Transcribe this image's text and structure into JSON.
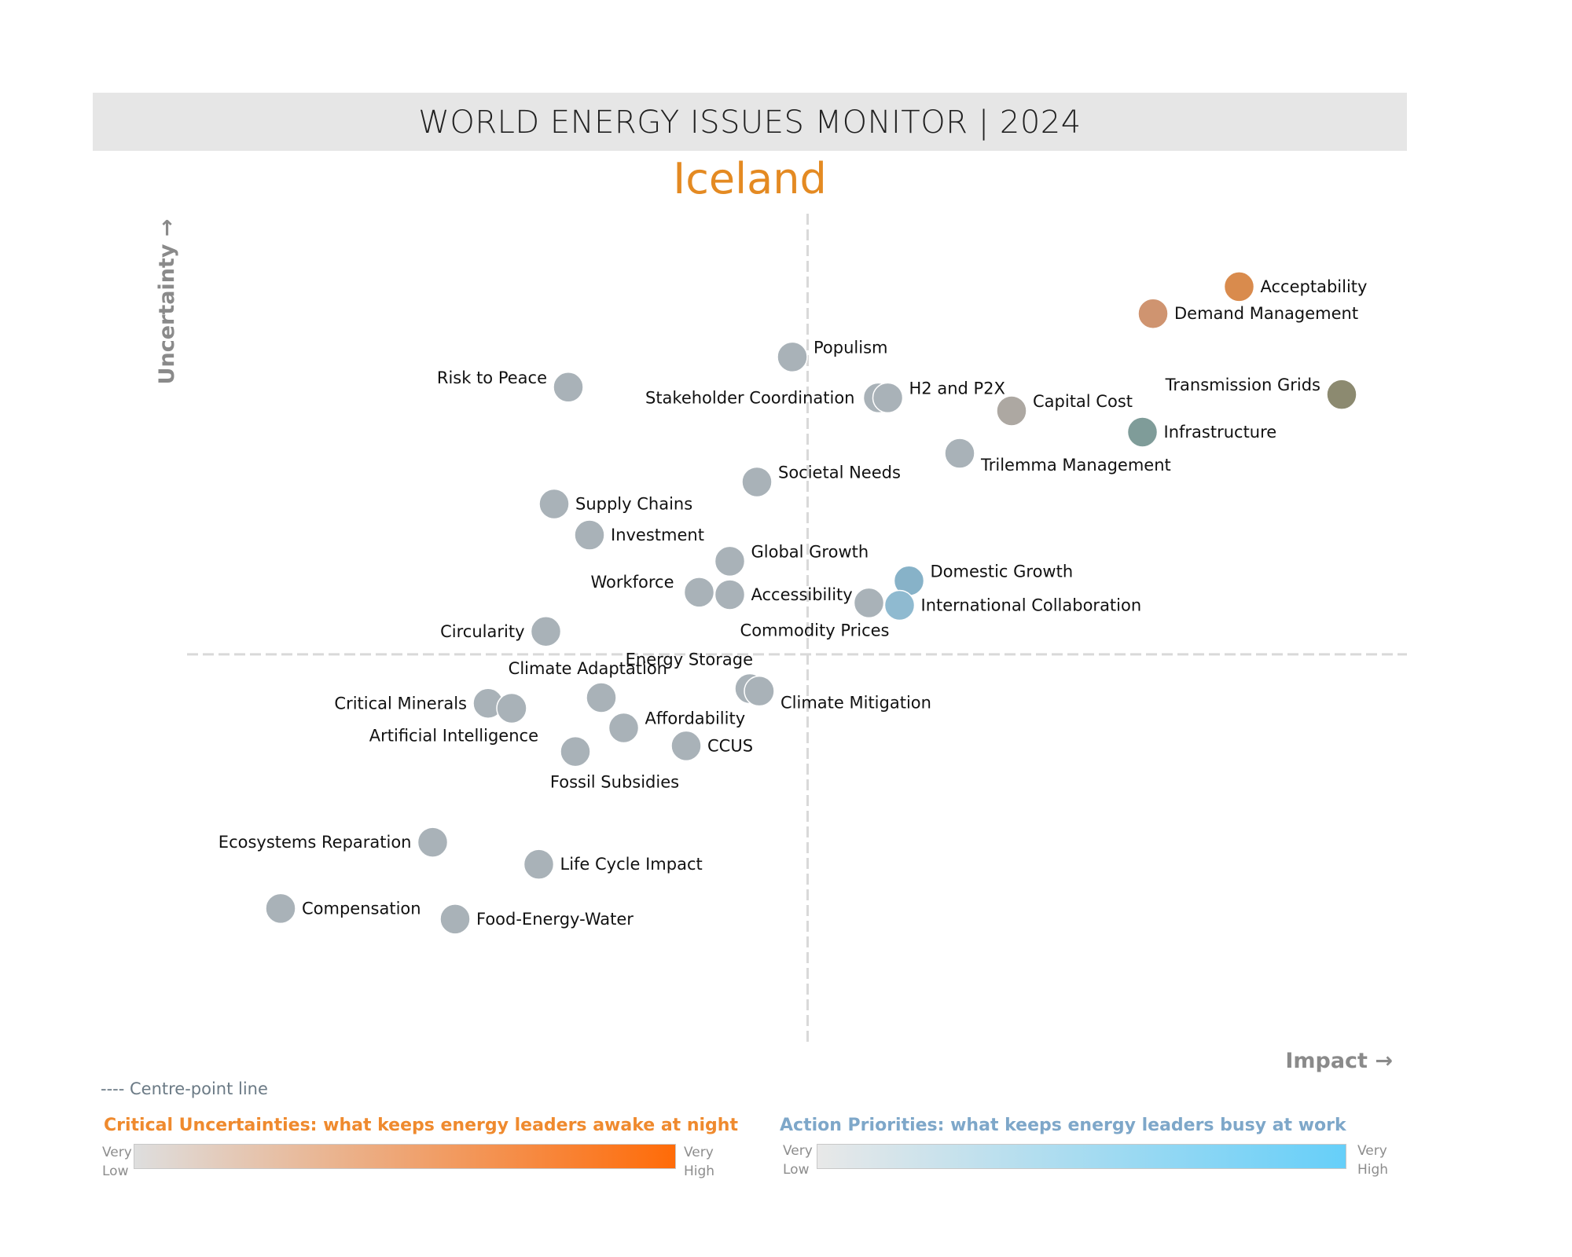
{
  "header": {
    "title": "WORLD ENERGY ISSUES MONITOR | 2024",
    "country": "Iceland"
  },
  "chart_data": {
    "type": "scatter",
    "xlabel": "Impact →",
    "ylabel": "Uncertainty →",
    "xlim": [
      0,
      100
    ],
    "ylim": [
      0,
      100
    ],
    "centre_x": 50.5,
    "centre_y": 47.8,
    "grid": false,
    "colors": {
      "neutral": "#a9b2b8",
      "acceptability": "#d98b4d",
      "demand_management": "#cf9470",
      "transmission_grids": "#8c8a70",
      "capital_cost": "#ada8a2",
      "infrastructure": "#7f9c99",
      "domestic_growth": "#87b2c8",
      "international_collaboration": "#8fbad0"
    },
    "points": [
      {
        "name": "Acceptability",
        "x": 87.1,
        "y": 92.8,
        "color": "acceptability",
        "label_pos": "right"
      },
      {
        "name": "Demand Management",
        "x": 79.8,
        "y": 89.5,
        "color": "demand_management",
        "label_pos": "right"
      },
      {
        "name": "Populism",
        "x": 49.2,
        "y": 84.2,
        "color": "neutral",
        "label_pos": "right-up"
      },
      {
        "name": "Risk to Peace",
        "x": 30.2,
        "y": 80.5,
        "color": "neutral",
        "label_pos": "left-up"
      },
      {
        "name": "Stakeholder Coordination",
        "x": 56.5,
        "y": 79.2,
        "color": "neutral",
        "label_pos": "left-up"
      },
      {
        "name": "H2 and P2X",
        "x": 57.3,
        "y": 79.2,
        "color": "neutral",
        "label_pos": "right-up"
      },
      {
        "name": "Transmission Grids",
        "x": 95.8,
        "y": 79.6,
        "color": "transmission_grids",
        "label_pos": "left-up"
      },
      {
        "name": "Capital Cost",
        "x": 67.8,
        "y": 77.6,
        "color": "capital_cost",
        "label_pos": "right-up"
      },
      {
        "name": "Infrastructure",
        "x": 78.9,
        "y": 75.0,
        "color": "infrastructure",
        "label_pos": "right"
      },
      {
        "name": "Trilemma Management",
        "x": 63.4,
        "y": 72.4,
        "color": "neutral",
        "label_pos": "right-down"
      },
      {
        "name": "Societal Needs",
        "x": 46.2,
        "y": 68.9,
        "color": "neutral",
        "label_pos": "right-up"
      },
      {
        "name": "Supply Chains",
        "x": 29.0,
        "y": 66.2,
        "color": "neutral",
        "label_pos": "right"
      },
      {
        "name": "Investment",
        "x": 32.0,
        "y": 62.4,
        "color": "neutral",
        "label_pos": "right"
      },
      {
        "name": "Global Growth",
        "x": 43.9,
        "y": 59.2,
        "color": "neutral",
        "label_pos": "right-up"
      },
      {
        "name": "Domestic Growth",
        "x": 59.1,
        "y": 56.8,
        "color": "domestic_growth",
        "label_pos": "right-up"
      },
      {
        "name": "Workforce",
        "x": 41.3,
        "y": 55.4,
        "color": "neutral",
        "label_pos": "left-up"
      },
      {
        "name": "Accessibility",
        "x": 43.9,
        "y": 55.1,
        "color": "neutral",
        "label_pos": "right"
      },
      {
        "name": "Commodity Prices",
        "x": 55.7,
        "y": 54.1,
        "color": "neutral",
        "label_pos": "left-down"
      },
      {
        "name": "International Collaboration",
        "x": 58.3,
        "y": 53.8,
        "color": "international_collaboration",
        "label_pos": "right"
      },
      {
        "name": "Circularity",
        "x": 28.3,
        "y": 50.6,
        "color": "neutral",
        "label_pos": "left"
      },
      {
        "name": "Energy Storage",
        "x": 45.6,
        "y": 43.6,
        "color": "neutral",
        "label_pos": "left-up"
      },
      {
        "name": "Climate Mitigation",
        "x": 46.4,
        "y": 43.3,
        "color": "neutral",
        "label_pos": "right-down"
      },
      {
        "name": "Climate Adaptation",
        "x": 33.0,
        "y": 42.5,
        "color": "neutral",
        "label_pos": "left-up"
      },
      {
        "name": "Critical Minerals",
        "x": 23.4,
        "y": 41.8,
        "color": "neutral",
        "label_pos": "left"
      },
      {
        "name": "Artificial Intelligence",
        "x": 25.4,
        "y": 41.2,
        "color": "neutral",
        "label_pos": "left-down"
      },
      {
        "name": "Affordability",
        "x": 34.9,
        "y": 38.8,
        "color": "neutral",
        "label_pos": "right-up"
      },
      {
        "name": "CCUS",
        "x": 40.2,
        "y": 36.6,
        "color": "neutral",
        "label_pos": "right"
      },
      {
        "name": "Fossil Subsidies",
        "x": 30.8,
        "y": 35.9,
        "color": "neutral",
        "label_pos": "below"
      },
      {
        "name": "Ecosystems Reparation",
        "x": 18.7,
        "y": 24.8,
        "color": "neutral",
        "label_pos": "left"
      },
      {
        "name": "Life Cycle Impact",
        "x": 27.7,
        "y": 22.1,
        "color": "neutral",
        "label_pos": "right"
      },
      {
        "name": "Compensation",
        "x": 5.8,
        "y": 16.7,
        "color": "neutral",
        "label_pos": "right"
      },
      {
        "name": "Food-Energy-Water",
        "x": 20.6,
        "y": 15.4,
        "color": "neutral",
        "label_pos": "right"
      }
    ]
  },
  "legend": {
    "centre_note": "---- Centre-point line",
    "critical_title": "Critical Uncertainties: what keeps energy leaders awake at night",
    "action_title": "Action Priorities: what keeps energy leaders busy at work",
    "very": "Very",
    "low": "Low",
    "high": "High"
  }
}
